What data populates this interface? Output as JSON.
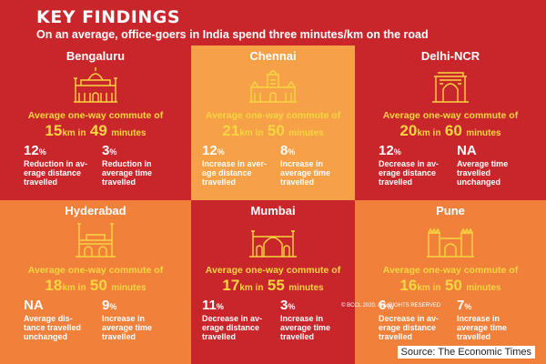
{
  "header": {
    "title": "KEY FINDINGS",
    "subtitle": "On an average, office-goers in India spend three minutes/km on the road"
  },
  "colors": {
    "red": "#c9262b",
    "orange": "#f0803a",
    "light_orange": "#f6a047",
    "yellow": "#f7d641"
  },
  "cities": [
    {
      "name": "Bengaluru",
      "bg": "#c9262b",
      "icon": "palace-icon",
      "avg_label": "Average one-way commute of",
      "km": "15",
      "km_unit": "km in",
      "min": "49",
      "min_unit": "minutes",
      "stat1": {
        "value": "12",
        "unit": "%",
        "desc": "Reduction in av-\nerage distance\ntravelled"
      },
      "stat2": {
        "value": "3",
        "unit": "%",
        "desc": "Reduction in\naverage time\ntravelled"
      }
    },
    {
      "name": "Chennai",
      "bg": "#f6a047",
      "icon": "central-station-icon",
      "avg_label": "Average one-way commute of",
      "km": "21",
      "km_unit": "km in",
      "min": "50",
      "min_unit": "minutes",
      "stat1": {
        "value": "12",
        "unit": "%",
        "desc": "Increase in aver-\nage distance\ntravelled"
      },
      "stat2": {
        "value": "8",
        "unit": "%",
        "desc": "Increase in\naverage time\ntravelled"
      }
    },
    {
      "name": "Delhi-NCR",
      "bg": "#c9262b",
      "icon": "india-gate-icon",
      "avg_label": "Average one-way commute of",
      "km": "20",
      "km_unit": "km in",
      "min": "60",
      "min_unit": "minutes",
      "stat1": {
        "value": "12",
        "unit": "%",
        "desc": "Decrease in av-\nerage distance\ntravelled"
      },
      "stat2": {
        "value": "NA",
        "unit": "",
        "desc": "Average time\ntravelled\nunchanged"
      }
    },
    {
      "name": "Hyderabad",
      "bg": "#f0803a",
      "icon": "charminar-icon",
      "avg_label": "Average one-way commute of",
      "km": "18",
      "km_unit": "km in",
      "min": "50",
      "min_unit": "minutes",
      "stat1": {
        "value": "NA",
        "unit": "",
        "desc": "Average dis-\ntance travelled\nunchanged"
      },
      "stat2": {
        "value": "9",
        "unit": "%",
        "desc": "Increase in\naverage time\ntravelled"
      }
    },
    {
      "name": "Mumbai",
      "bg": "#c9262b",
      "icon": "gateway-of-india-icon",
      "avg_label": "Average one-way commute of",
      "km": "17",
      "km_unit": "km in",
      "min": "55",
      "min_unit": "minutes",
      "stat1": {
        "value": "11",
        "unit": "%",
        "desc": "Decrease in av-\nerage distance\ntravelled"
      },
      "stat2": {
        "value": "3",
        "unit": "%",
        "desc": "Increase in\naverage time\ntravelled"
      }
    },
    {
      "name": "Pune",
      "bg": "#f0803a",
      "icon": "shaniwar-wada-icon",
      "avg_label": "Average one-way commute of",
      "km": "16",
      "km_unit": "km in",
      "min": "50",
      "min_unit": "minutes",
      "stat1": {
        "value": "6",
        "unit": "%",
        "desc": "Decrease in av-\nerage distance\ntravelled"
      },
      "stat2": {
        "value": "7",
        "unit": "%",
        "desc": "Increase in\naverage time\ntravelled"
      }
    }
  ],
  "watermark": "© BCCL 2020. ALL RIGHTS RESERVED",
  "source": "Source: The Economic Times"
}
